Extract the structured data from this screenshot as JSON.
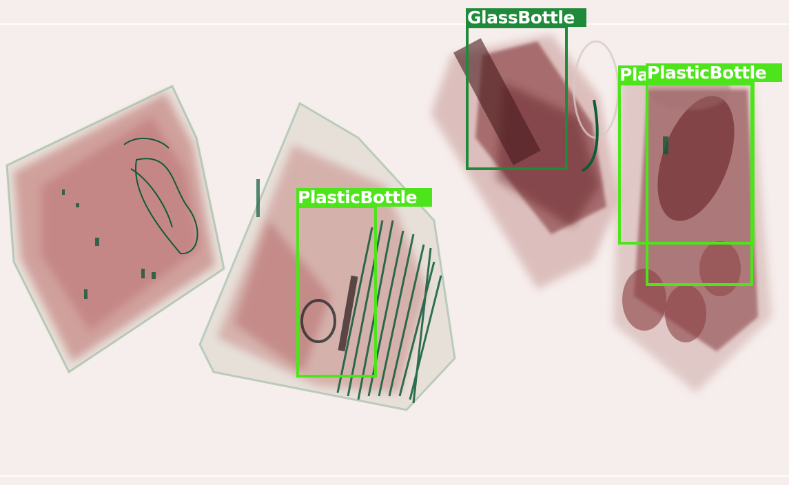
{
  "image": {
    "kind": "x-ray baggage scan",
    "background": "#f6eeec"
  },
  "colors": {
    "glass_box": "#1e8a3a",
    "plastic_box": "#4ee41c",
    "bag_tissue": "#8a3b3b",
    "wire_green": "#0e5a3a"
  },
  "detections": [
    {
      "label": "GlassBottle",
      "color": "#1e8a3a"
    },
    {
      "label": "PlasticBottle",
      "color": "#4ee41c"
    },
    {
      "label": "PlasticBottle",
      "color": "#4ee41c"
    },
    {
      "label": "PlasticBottle",
      "color": "#4ee41c"
    }
  ]
}
